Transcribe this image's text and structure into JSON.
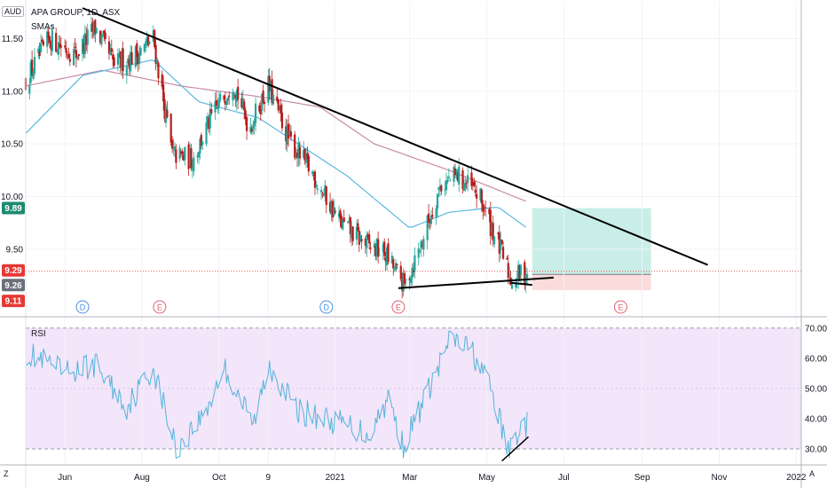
{
  "header": {
    "symbol_line": "APA GROUP, 1D, ASX",
    "indicator": "SMAs",
    "currency": "AUD"
  },
  "rsi_panel": {
    "label": "RSI"
  },
  "corners": {
    "left": "Z",
    "right": "A"
  },
  "colors": {
    "up": "#26a69a",
    "down": "#b71c1c",
    "sma_fast": "#5ab8e0",
    "sma_slow": "#c98aa8",
    "rsi_line": "#55b4d8",
    "rsi_band": "#f3e5fa",
    "target_zone": "#c9eee7",
    "stop_zone": "#fbdcdc",
    "last_price": "#ef5350",
    "badge_green": "#1e8a70",
    "badge_gray": "#6b6f7a",
    "badge_red": "#e53935",
    "dividend_marker": "#4a90e2",
    "earnings_marker": "#e06070"
  },
  "chart_data": [
    {
      "type": "candlestick",
      "title": "APA GROUP, 1D, ASX",
      "y_unit": "AUD",
      "ylim": [
        8.9,
        11.85
      ],
      "y_ticks": [
        {
          "value": 11.5,
          "label": "11.50"
        },
        {
          "value": 11.0,
          "label": "11.00"
        },
        {
          "value": 10.5,
          "label": "10.50"
        },
        {
          "value": 10.0,
          "label": "10.00"
        },
        {
          "value": 9.5,
          "label": "9.50"
        }
      ],
      "price_badges": [
        {
          "value": 9.89,
          "label": "9.89",
          "color": "green"
        },
        {
          "value": 9.29,
          "label": "9.29",
          "color": "red"
        },
        {
          "value": 9.26,
          "label": "9.26",
          "color": "gray"
        },
        {
          "value": 9.11,
          "label": "9.11",
          "color": "red"
        }
      ],
      "x_axis": {
        "start": "2020-05-01",
        "end": "2022-01-05",
        "ticks": [
          {
            "date": "2020-06-01",
            "label": "Jun"
          },
          {
            "date": "2020-08-01",
            "label": "Aug"
          },
          {
            "date": "2020-10-01",
            "label": "Oct"
          },
          {
            "date": "2020-11-09",
            "label": "9"
          },
          {
            "date": "2021-01-01",
            "label": "2021"
          },
          {
            "date": "2021-03-01",
            "label": "Mar"
          },
          {
            "date": "2021-05-01",
            "label": "May"
          },
          {
            "date": "2021-07-01",
            "label": "Jul"
          },
          {
            "date": "2021-09-01",
            "label": "Sep"
          },
          {
            "date": "2021-11-01",
            "label": "Nov"
          },
          {
            "date": "2022-01-01",
            "label": "2022"
          }
        ]
      },
      "candles_close_path": [
        {
          "date": "2020-05-01",
          "close": 11.1
        },
        {
          "date": "2020-05-20",
          "close": 11.5
        },
        {
          "date": "2020-06-10",
          "close": 11.35
        },
        {
          "date": "2020-06-25",
          "close": 11.6
        },
        {
          "date": "2020-07-10",
          "close": 11.25
        },
        {
          "date": "2020-07-28",
          "close": 11.35
        },
        {
          "date": "2020-08-10",
          "close": 11.5
        },
        {
          "date": "2020-08-25",
          "close": 10.4
        },
        {
          "date": "2020-09-10",
          "close": 10.35
        },
        {
          "date": "2020-09-25",
          "close": 10.75
        },
        {
          "date": "2020-10-12",
          "close": 11.1
        },
        {
          "date": "2020-10-25",
          "close": 10.65
        },
        {
          "date": "2020-11-09",
          "close": 11.05
        },
        {
          "date": "2020-11-25",
          "close": 10.55
        },
        {
          "date": "2020-12-15",
          "close": 10.2
        },
        {
          "date": "2021-01-05",
          "close": 9.75
        },
        {
          "date": "2021-01-25",
          "close": 9.55
        },
        {
          "date": "2021-02-10",
          "close": 9.45
        },
        {
          "date": "2021-02-25",
          "close": 9.15
        },
        {
          "date": "2021-03-10",
          "close": 9.55
        },
        {
          "date": "2021-03-25",
          "close": 10.1
        },
        {
          "date": "2021-04-08",
          "close": 10.2
        },
        {
          "date": "2021-04-25",
          "close": 10.0
        },
        {
          "date": "2021-05-10",
          "close": 9.55
        },
        {
          "date": "2021-05-20",
          "close": 9.22
        },
        {
          "date": "2021-06-02",
          "close": 9.29
        }
      ],
      "sma_fast": [
        {
          "date": "2020-05-01",
          "close": 10.6
        },
        {
          "date": "2020-06-15",
          "close": 11.15
        },
        {
          "date": "2020-08-10",
          "close": 11.3
        },
        {
          "date": "2020-09-15",
          "close": 10.9
        },
        {
          "date": "2020-11-01",
          "close": 10.75
        },
        {
          "date": "2021-01-10",
          "close": 10.2
        },
        {
          "date": "2021-03-01",
          "close": 9.7
        },
        {
          "date": "2021-04-01",
          "close": 9.85
        },
        {
          "date": "2021-05-10",
          "close": 9.9
        },
        {
          "date": "2021-06-02",
          "close": 9.7
        }
      ],
      "sma_slow": [
        {
          "date": "2020-05-01",
          "close": 11.05
        },
        {
          "date": "2020-07-01",
          "close": 11.2
        },
        {
          "date": "2020-09-01",
          "close": 11.05
        },
        {
          "date": "2020-11-01",
          "close": 10.95
        },
        {
          "date": "2020-12-20",
          "close": 10.85
        },
        {
          "date": "2021-02-01",
          "close": 10.5
        },
        {
          "date": "2021-04-01",
          "close": 10.25
        },
        {
          "date": "2021-06-02",
          "close": 9.95
        }
      ],
      "trendlines": [
        {
          "from": {
            "date": "2020-06-15",
            "price": 11.79
          },
          "to": {
            "date": "2021-10-23",
            "price": 9.35
          }
        },
        {
          "from": {
            "date": "2021-02-20",
            "price": 9.13
          },
          "to": {
            "date": "2021-06-23",
            "price": 9.23
          }
        },
        {
          "from": {
            "date": "2021-05-20",
            "price": 9.18
          },
          "to": {
            "date": "2021-06-06",
            "price": 9.16
          }
        }
      ],
      "position": {
        "start": "2021-06-06",
        "end": "2021-09-08",
        "entry": 9.26,
        "target": 9.89,
        "stop": 9.11
      },
      "events": [
        {
          "type": "D",
          "date": "2020-06-15"
        },
        {
          "type": "E",
          "date": "2020-08-15"
        },
        {
          "type": "D",
          "date": "2020-12-25"
        },
        {
          "type": "E",
          "date": "2021-02-20"
        },
        {
          "type": "E",
          "date": "2021-08-15"
        }
      ]
    },
    {
      "type": "line",
      "title": "RSI",
      "ylim": [
        25,
        72
      ],
      "y_ticks": [
        {
          "value": 70,
          "label": "70.00"
        },
        {
          "value": 60,
          "label": "60.00"
        },
        {
          "value": 50,
          "label": "50.00"
        },
        {
          "value": 40,
          "label": "40.00"
        },
        {
          "value": 30,
          "label": "30.00"
        }
      ],
      "band": [
        30,
        70
      ],
      "series": [
        {
          "date": "2020-05-01",
          "value": 62
        },
        {
          "date": "2020-06-01",
          "value": 55
        },
        {
          "date": "2020-06-25",
          "value": 58
        },
        {
          "date": "2020-07-20",
          "value": 44
        },
        {
          "date": "2020-08-10",
          "value": 57
        },
        {
          "date": "2020-08-28",
          "value": 30
        },
        {
          "date": "2020-09-20",
          "value": 42
        },
        {
          "date": "2020-10-05",
          "value": 57
        },
        {
          "date": "2020-10-28",
          "value": 38
        },
        {
          "date": "2020-11-10",
          "value": 58
        },
        {
          "date": "2020-12-01",
          "value": 43
        },
        {
          "date": "2020-12-22",
          "value": 40
        },
        {
          "date": "2021-01-10",
          "value": 38
        },
        {
          "date": "2021-01-28",
          "value": 35
        },
        {
          "date": "2021-02-12",
          "value": 47
        },
        {
          "date": "2021-02-24",
          "value": 31
        },
        {
          "date": "2021-03-10",
          "value": 44
        },
        {
          "date": "2021-03-25",
          "value": 58
        },
        {
          "date": "2021-04-02",
          "value": 67
        },
        {
          "date": "2021-04-20",
          "value": 62
        },
        {
          "date": "2021-05-05",
          "value": 49
        },
        {
          "date": "2021-05-18",
          "value": 29
        },
        {
          "date": "2021-05-27",
          "value": 37
        },
        {
          "date": "2021-06-02",
          "value": 38
        }
      ],
      "trendline": {
        "from": {
          "date": "2021-05-13",
          "value": 26
        },
        "to": {
          "date": "2021-06-03",
          "value": 34
        }
      }
    }
  ]
}
